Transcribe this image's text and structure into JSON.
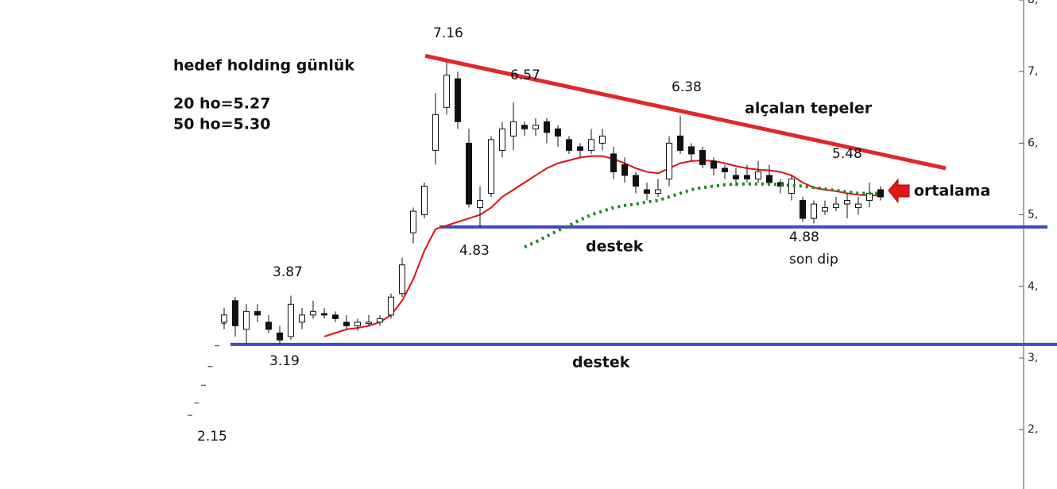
{
  "chart_data": {
    "type": "candlestick",
    "ylim": [
      1.17,
      8.0
    ],
    "yticks": [
      {
        "value": 8,
        "label": "8,"
      },
      {
        "value": 7,
        "label": "7,"
      },
      {
        "value": 6,
        "label": "6,"
      },
      {
        "value": 5,
        "label": "5,"
      },
      {
        "value": 4,
        "label": "4,"
      },
      {
        "value": 3,
        "label": "3,"
      },
      {
        "value": 2,
        "label": "2,"
      }
    ],
    "early_ticks": [
      2.2,
      2.37,
      2.62,
      2.88,
      3.17,
      3.48
    ],
    "candles": {
      "open": [
        3.5,
        3.8,
        3.4,
        3.65,
        3.5,
        3.35,
        3.3,
        3.5,
        3.6,
        3.62,
        3.6,
        3.5,
        3.45,
        3.48,
        3.5,
        3.6,
        3.9,
        4.75,
        5.0,
        5.9,
        6.5,
        6.9,
        6.0,
        5.1,
        5.3,
        5.9,
        6.1,
        6.25,
        6.2,
        6.3,
        6.2,
        6.05,
        5.95,
        5.9,
        6.0,
        5.85,
        5.7,
        5.55,
        5.35,
        5.3,
        5.5,
        6.1,
        5.95,
        5.9,
        5.75,
        5.65,
        5.55,
        5.55,
        5.5,
        5.55,
        5.45,
        5.3,
        5.2,
        4.95,
        5.05,
        5.1,
        5.15,
        5.1,
        5.2,
        5.35
      ],
      "high": [
        3.7,
        3.85,
        3.75,
        3.75,
        3.6,
        3.45,
        3.87,
        3.7,
        3.8,
        3.7,
        3.65,
        3.6,
        3.55,
        3.6,
        3.6,
        3.9,
        4.4,
        5.1,
        5.45,
        6.7,
        7.16,
        7.0,
        6.2,
        5.4,
        6.1,
        6.3,
        6.57,
        6.3,
        6.35,
        6.35,
        6.25,
        6.1,
        6.0,
        6.2,
        6.2,
        5.95,
        5.8,
        5.6,
        5.45,
        5.5,
        6.1,
        6.38,
        6.0,
        5.95,
        5.8,
        5.7,
        5.65,
        5.7,
        5.75,
        5.7,
        5.5,
        5.55,
        5.25,
        5.2,
        5.2,
        5.25,
        5.3,
        5.25,
        5.45,
        5.4
      ],
      "low": [
        3.4,
        3.3,
        3.2,
        3.5,
        3.35,
        3.19,
        3.25,
        3.4,
        3.55,
        3.55,
        3.5,
        3.4,
        3.38,
        3.45,
        3.45,
        3.55,
        3.85,
        4.6,
        4.95,
        5.7,
        6.4,
        6.2,
        5.1,
        4.83,
        5.25,
        5.8,
        5.9,
        6.1,
        6.1,
        6.0,
        5.95,
        5.85,
        5.8,
        5.85,
        5.9,
        5.5,
        5.45,
        5.3,
        5.2,
        5.25,
        5.4,
        5.85,
        5.75,
        5.65,
        5.55,
        5.5,
        5.4,
        5.45,
        5.45,
        5.4,
        5.3,
        5.2,
        4.9,
        4.88,
        5.0,
        5.05,
        4.95,
        5.0,
        5.1,
        5.2
      ],
      "close": [
        3.6,
        3.45,
        3.65,
        3.6,
        3.4,
        3.25,
        3.75,
        3.6,
        3.65,
        3.6,
        3.55,
        3.45,
        3.5,
        3.5,
        3.55,
        3.85,
        4.3,
        5.05,
        5.4,
        6.4,
        6.95,
        6.3,
        5.15,
        5.2,
        6.05,
        6.2,
        6.3,
        6.2,
        6.25,
        6.15,
        6.1,
        5.9,
        5.9,
        6.05,
        6.1,
        5.6,
        5.55,
        5.4,
        5.3,
        5.35,
        6.0,
        5.9,
        5.85,
        5.7,
        5.65,
        5.6,
        5.5,
        5.5,
        5.6,
        5.45,
        5.4,
        5.5,
        4.95,
        5.15,
        5.1,
        5.15,
        5.2,
        5.15,
        5.3,
        5.25
      ]
    },
    "ma20": {
      "color": "#e01010",
      "values": [
        null,
        null,
        null,
        null,
        null,
        null,
        null,
        null,
        null,
        3.3,
        3.35,
        3.4,
        3.42,
        3.45,
        3.5,
        3.6,
        3.8,
        4.1,
        4.5,
        4.8,
        4.85,
        4.9,
        4.95,
        5.0,
        5.1,
        5.25,
        5.35,
        5.45,
        5.55,
        5.65,
        5.72,
        5.76,
        5.8,
        5.82,
        5.82,
        5.78,
        5.72,
        5.65,
        5.6,
        5.58,
        5.65,
        5.72,
        5.75,
        5.76,
        5.75,
        5.72,
        5.68,
        5.65,
        5.63,
        5.62,
        5.6,
        5.55,
        5.45,
        5.38,
        5.35,
        5.33,
        5.3,
        5.28,
        5.27,
        5.27
      ]
    },
    "ma50": {
      "color": "#1a8a1a",
      "values": [
        null,
        null,
        null,
        null,
        null,
        null,
        null,
        null,
        null,
        null,
        null,
        null,
        null,
        null,
        null,
        null,
        null,
        null,
        null,
        null,
        null,
        null,
        null,
        null,
        null,
        null,
        null,
        4.55,
        4.62,
        4.7,
        4.78,
        4.85,
        4.93,
        5.0,
        5.05,
        5.1,
        5.13,
        5.15,
        5.18,
        5.2,
        5.25,
        5.3,
        5.35,
        5.38,
        5.4,
        5.42,
        5.43,
        5.43,
        5.43,
        5.43,
        5.42,
        5.41,
        5.4,
        5.38,
        5.36,
        5.34,
        5.32,
        5.3,
        5.3,
        5.3
      ]
    },
    "trendline": {
      "color": "#e02828",
      "values": [
        7.22,
        5.65
      ]
    },
    "support_levels": {
      "color": "#4048c8",
      "values": [
        4.83,
        3.19
      ]
    },
    "annotations": [
      "hedef holding günlük",
      "20 ho=5.27",
      "50 ho=5.30",
      "7.16",
      "6.57",
      "6.38",
      "5.48",
      "alçalan tepeler",
      "ortalama",
      "4.83",
      "destek",
      "4.88",
      "son dip",
      "3.87",
      "3.19",
      "destek",
      "2.15"
    ]
  }
}
